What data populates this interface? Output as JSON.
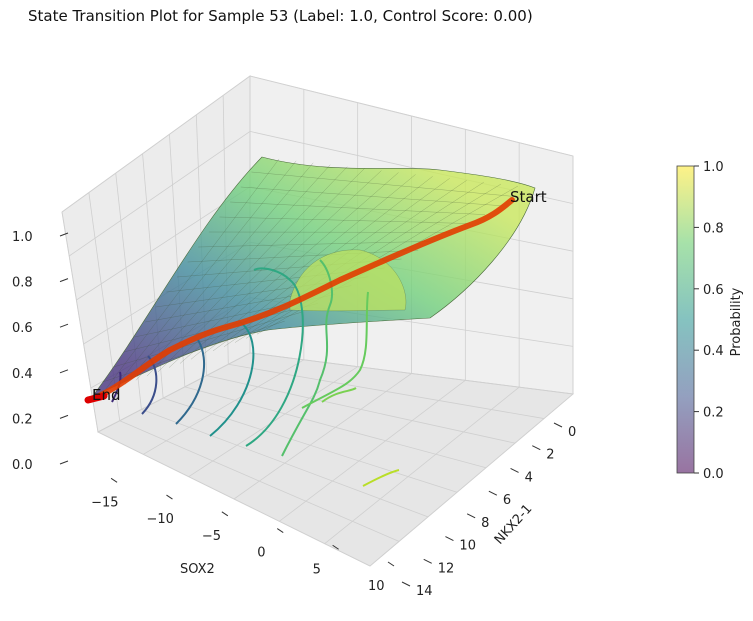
{
  "chart_data": {
    "type": "surface3d",
    "title": "State Transition Plot for Sample 53 (Label: 1.0, Control Score: 0.00)",
    "xlabel": "SOX2",
    "ylabel": "NKX2-1",
    "zlabel": "",
    "x_ticks": [
      "−15",
      "−10",
      "−5",
      "0",
      "5",
      "10"
    ],
    "y_ticks": [
      "0",
      "2",
      "4",
      "6",
      "8",
      "10",
      "12",
      "14"
    ],
    "z_ticks": [
      "0.0",
      "0.2",
      "0.4",
      "0.6",
      "0.8",
      "1.0"
    ],
    "xlim": [
      -16,
      10
    ],
    "ylim": [
      0,
      14
    ],
    "zlim": [
      0,
      1
    ],
    "colorbar": {
      "label": "Probability",
      "ticks": [
        "0.0",
        "0.2",
        "0.4",
        "0.6",
        "0.8",
        "1.0"
      ],
      "range": [
        0,
        1
      ],
      "colormap": "viridis"
    },
    "annotations": {
      "start": "Start",
      "end": "End"
    },
    "trajectory_color": "#e23c00",
    "trajectory_end_color": "#dd0000",
    "surface_colors": [
      "#3b528b",
      "#5dc863",
      "#d0e11c"
    ],
    "grid": true
  }
}
